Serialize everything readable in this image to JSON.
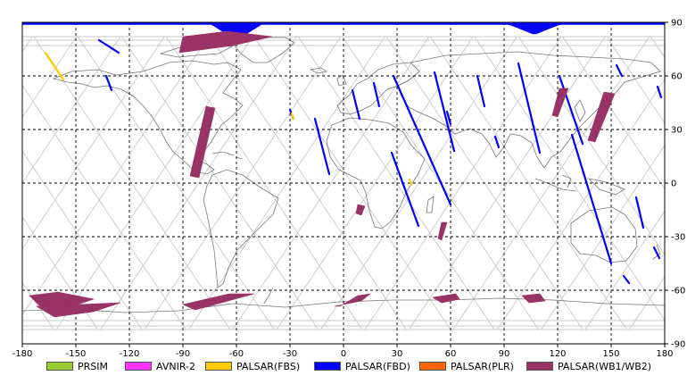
{
  "map": {
    "x_ticks": [
      "-180",
      "-150",
      "-120",
      "-90",
      "-60",
      "-30",
      "0",
      "30",
      "60",
      "90",
      "120",
      "150",
      "180"
    ],
    "y_ticks": [
      "90",
      "60",
      "30",
      "0",
      "-30",
      "-60",
      "-90"
    ],
    "lon_range": [
      -180,
      180
    ],
    "lat_range": [
      -90,
      90
    ],
    "grid_style": "dashed",
    "background": "#ffffff",
    "coastline_color": "#777777",
    "orbit_color": "#c8c8c8"
  },
  "legend": {
    "placement": "bottom",
    "items": [
      {
        "label": "PRSIM",
        "color": "#99cc33"
      },
      {
        "label": "AVNIR-2",
        "color": "#ff33ff"
      },
      {
        "label": "PALSAR(FBS)",
        "color": "#ffcc00"
      },
      {
        "label": "PALSAR(FBD)",
        "color": "#0000ff"
      },
      {
        "label": "PALSAR(PLR)",
        "color": "#ff6600"
      },
      {
        "label": "PALSAR(WB1/WB2)",
        "color": "#993366"
      }
    ]
  },
  "swaths": [
    {
      "sensor": "PALSAR(FBD)",
      "path": [
        [
          -137,
          80
        ],
        [
          -126,
          73
        ]
      ]
    },
    {
      "sensor": "PALSAR(FBD)",
      "path": [
        [
          -133,
          60
        ],
        [
          -130,
          52
        ]
      ]
    },
    {
      "sensor": "PALSAR(FBD)",
      "path": [
        [
          -30,
          41
        ],
        [
          -28,
          36
        ]
      ]
    },
    {
      "sensor": "PALSAR(FBD)",
      "path": [
        [
          -16,
          36
        ],
        [
          -8,
          5
        ]
      ]
    },
    {
      "sensor": "PALSAR(FBD)",
      "path": [
        [
          5,
          52
        ],
        [
          9,
          36
        ]
      ]
    },
    {
      "sensor": "PALSAR(FBD)",
      "path": [
        [
          17,
          56
        ],
        [
          20,
          43
        ]
      ]
    },
    {
      "sensor": "PALSAR(FBD)",
      "path": [
        [
          27,
          17
        ],
        [
          42,
          -24
        ]
      ]
    },
    {
      "sensor": "PALSAR(FBD)",
      "path": [
        [
          28,
          60
        ],
        [
          60,
          -12
        ]
      ]
    },
    {
      "sensor": "PALSAR(FBD)",
      "path": [
        [
          51,
          62
        ],
        [
          62,
          18
        ]
      ]
    },
    {
      "sensor": "PALSAR(FBD)",
      "path": [
        [
          58,
          40
        ],
        [
          60,
          33
        ]
      ]
    },
    {
      "sensor": "PALSAR(FBD)",
      "path": [
        [
          75,
          60
        ],
        [
          79,
          43
        ]
      ]
    },
    {
      "sensor": "PALSAR(FBD)",
      "path": [
        [
          85,
          26
        ],
        [
          87,
          20
        ]
      ]
    },
    {
      "sensor": "PALSAR(FBD)",
      "path": [
        [
          98,
          67
        ],
        [
          110,
          17
        ]
      ]
    },
    {
      "sensor": "PALSAR(FBD)",
      "path": [
        [
          121,
          60
        ],
        [
          134,
          22
        ]
      ]
    },
    {
      "sensor": "PALSAR(FBD)",
      "path": [
        [
          128,
          27
        ],
        [
          150,
          -45
        ]
      ]
    },
    {
      "sensor": "PALSAR(FBD)",
      "path": [
        [
          153,
          66
        ],
        [
          156,
          60
        ]
      ]
    },
    {
      "sensor": "PALSAR(FBD)",
      "path": [
        [
          164,
          -8
        ],
        [
          168,
          -25
        ]
      ]
    },
    {
      "sensor": "PALSAR(FBD)",
      "path": [
        [
          174,
          -36
        ],
        [
          177,
          -42
        ]
      ]
    },
    {
      "sensor": "PALSAR(FBD)",
      "path": [
        [
          176,
          54
        ],
        [
          178,
          48
        ]
      ]
    },
    {
      "sensor": "PALSAR(FBD)",
      "path": [
        [
          157,
          -52
        ],
        [
          160,
          -56
        ]
      ]
    },
    {
      "sensor": "PALSAR(FBS)",
      "path": [
        [
          -167,
          73
        ],
        [
          -157,
          58
        ]
      ]
    },
    {
      "sensor": "PALSAR(FBS)",
      "path": [
        [
          -29,
          39
        ],
        [
          -28,
          36
        ]
      ]
    },
    {
      "sensor": "PALSAR(FBS)",
      "path": [
        [
          37,
          2
        ],
        [
          38,
          -1
        ]
      ]
    },
    {
      "sensor": "PALSAR(WB1/WB2)",
      "poly": [
        [
          -90,
          82
        ],
        [
          -65,
          85
        ],
        [
          -40,
          82
        ],
        [
          -62,
          77
        ],
        [
          -92,
          73
        ]
      ]
    },
    {
      "sensor": "PALSAR(WB1/WB2)",
      "poly": [
        [
          -77,
          43
        ],
        [
          -72,
          42
        ],
        [
          -81,
          3
        ],
        [
          -86,
          4
        ]
      ]
    },
    {
      "sensor": "PALSAR(WB1/WB2)",
      "poly": [
        [
          -176,
          -63
        ],
        [
          -160,
          -61
        ],
        [
          -140,
          -65
        ],
        [
          -152,
          -69
        ],
        [
          -170,
          -69
        ]
      ]
    },
    {
      "sensor": "PALSAR(WB1/WB2)",
      "poly": [
        [
          -172,
          -69
        ],
        [
          -125,
          -67
        ],
        [
          -140,
          -72
        ],
        [
          -162,
          -75
        ]
      ]
    },
    {
      "sensor": "PALSAR(WB1/WB2)",
      "poly": [
        [
          -83,
          -71
        ],
        [
          -50,
          -62
        ],
        [
          -64,
          -62
        ],
        [
          -90,
          -68
        ]
      ]
    },
    {
      "sensor": "PALSAR(WB1/WB2)",
      "poly": [
        [
          -5,
          -69
        ],
        [
          -2,
          -69
        ],
        [
          8,
          -63
        ],
        [
          15,
          -62
        ],
        [
          10,
          -66
        ]
      ]
    },
    {
      "sensor": "PALSAR(WB1/WB2)",
      "poly": [
        [
          50,
          -64
        ],
        [
          63,
          -62
        ],
        [
          65,
          -65
        ],
        [
          55,
          -67
        ]
      ]
    },
    {
      "sensor": "PALSAR(WB1/WB2)",
      "poly": [
        [
          100,
          -63
        ],
        [
          110,
          -62
        ],
        [
          113,
          -66
        ],
        [
          104,
          -67
        ]
      ]
    },
    {
      "sensor": "PALSAR(WB1/WB2)",
      "poly": [
        [
          8,
          -12
        ],
        [
          12,
          -13
        ],
        [
          10,
          -18
        ],
        [
          7,
          -17
        ]
      ]
    },
    {
      "sensor": "PALSAR(WB1/WB2)",
      "poly": [
        [
          55,
          -22
        ],
        [
          58,
          -22
        ],
        [
          55,
          -32
        ],
        [
          53,
          -31
        ]
      ]
    },
    {
      "sensor": "PALSAR(WB1/WB2)",
      "poly": [
        [
          121,
          53
        ],
        [
          126,
          53
        ],
        [
          120,
          37
        ],
        [
          117,
          38
        ]
      ]
    },
    {
      "sensor": "PALSAR(WB1/WB2)",
      "poly": [
        [
          146,
          51
        ],
        [
          152,
          50
        ],
        [
          141,
          23
        ],
        [
          137,
          24
        ]
      ]
    }
  ],
  "polar_caps": [
    {
      "sensor": "PALSAR(FBD)",
      "lon_start": -180,
      "lon_end": 180,
      "peaks": [
        [
          -60,
          80
        ],
        [
          107,
          83
        ]
      ]
    }
  ],
  "footer": {}
}
